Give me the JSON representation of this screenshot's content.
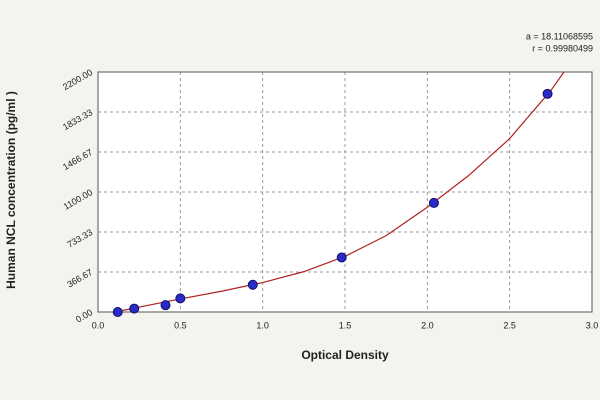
{
  "chart_data": {
    "type": "scatter",
    "xlabel": "Optical Density",
    "ylabel": "Human NCL concentration (pg/ml )",
    "annotations": [
      "a = 18.11068595",
      "r = 0.99980499"
    ],
    "xlim": [
      0,
      3.0
    ],
    "xticks": [
      {
        "value": 0,
        "label": "0.0"
      },
      0.5,
      {
        "value": 1,
        "label": "1.0"
      },
      1.5,
      {
        "value": 2,
        "label": "2.0"
      },
      2.5,
      {
        "value": 3,
        "label": "3.0"
      }
    ],
    "ylim": [
      0,
      2200
    ],
    "yticks": [
      {
        "value": 0,
        "label": "0.00"
      },
      {
        "value": 366.67,
        "label": "366.67"
      },
      {
        "value": 733.33,
        "label": "733.33"
      },
      {
        "value": 1100,
        "label": "1100.00"
      },
      {
        "value": 1466.67,
        "label": "1466.67"
      },
      {
        "value": 1833.33,
        "label": "1833.33"
      },
      {
        "value": 2200,
        "label": "2200.00"
      }
    ],
    "grid": true,
    "series": [
      {
        "type": "scatter",
        "color": "#2a2ac8",
        "x": [
          0.12,
          0.22,
          0.41,
          0.5,
          0.94,
          1.48,
          2.04,
          2.73
        ],
        "values": [
          0,
          31.25,
          62.5,
          125,
          250,
          500,
          1000,
          2000
        ]
      },
      {
        "type": "line",
        "color": "#b02020",
        "x": [
          0.12,
          0.3,
          0.5,
          0.75,
          1.0,
          1.25,
          1.5,
          1.75,
          2.0,
          2.25,
          2.5,
          2.75,
          2.83
        ],
        "values": [
          5,
          60,
          120,
          190,
          270,
          370,
          510,
          700,
          960,
          1250,
          1590,
          2030,
          2200
        ]
      }
    ]
  }
}
